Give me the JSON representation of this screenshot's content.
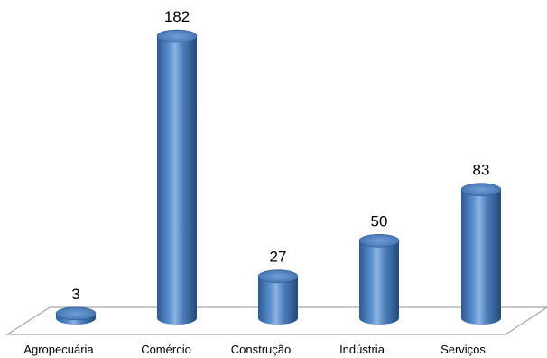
{
  "chart_data": {
    "type": "bar",
    "style": "3d-cylinder",
    "categories": [
      "Agropecuária",
      "Comércio",
      "Construção",
      "Indústria",
      "Serviços"
    ],
    "values": [
      3,
      182,
      27,
      50,
      83
    ],
    "title": "",
    "xlabel": "",
    "ylabel": "",
    "ylim": [
      0,
      182
    ],
    "grid": false,
    "legend": "none",
    "data_labels": true,
    "colors": {
      "bar_fill": "#4a7ebb",
      "bar_dark": "#2c5a92",
      "bar_light": "#8db3e2",
      "bar_top": "#5b8fd0",
      "floor_stroke": "#a6a6a6",
      "floor_fill": "#ffffff"
    }
  }
}
